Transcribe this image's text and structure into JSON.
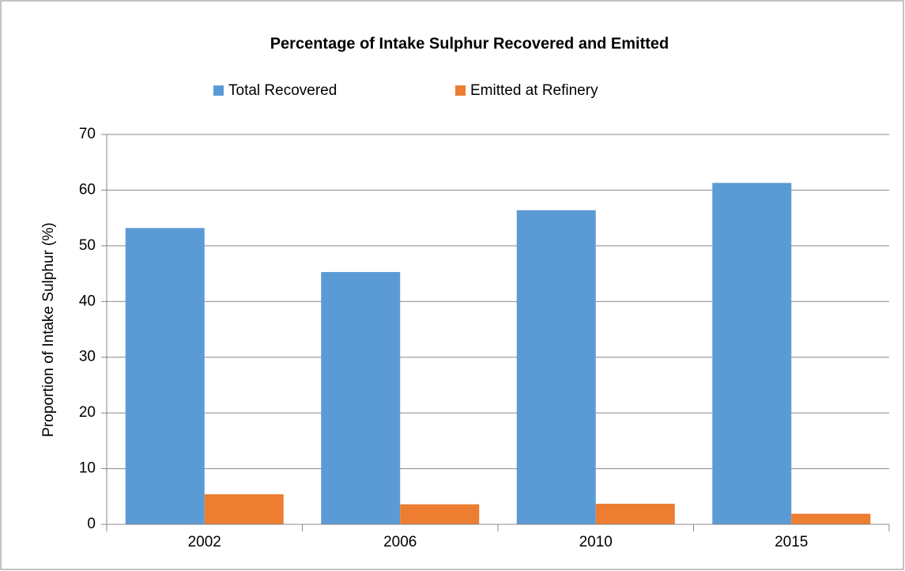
{
  "chart_data": {
    "type": "bar",
    "title": "Percentage of Intake Sulphur Recovered and Emitted",
    "y_label": "Proportion of Intake Sulphur (%)",
    "categories": [
      "2002",
      "2006",
      "2010",
      "2015"
    ],
    "series": [
      {
        "name": "Total Recovered",
        "color": "#5b9bd5",
        "values": [
          53.2,
          45.3,
          56.4,
          61.3
        ]
      },
      {
        "name": "Emitted at Refinery",
        "color": "#ed7d31",
        "values": [
          5.4,
          3.6,
          3.7,
          1.9
        ]
      }
    ],
    "ylim": [
      0,
      70
    ],
    "yticks": [
      0,
      10,
      20,
      30,
      40,
      50,
      60,
      70
    ],
    "grid": true,
    "legend": "top"
  }
}
